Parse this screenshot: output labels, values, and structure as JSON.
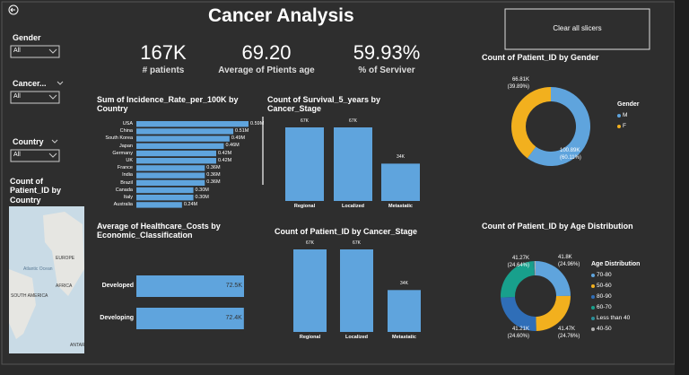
{
  "header": {
    "title": "Cancer Analysis",
    "button": "Clear all slicers"
  },
  "kpis": [
    {
      "value": "167K",
      "label": "# patients"
    },
    {
      "value": "69.20",
      "label": "Average of Ptients age"
    },
    {
      "value": "59.93%",
      "label": "% of Serviver"
    }
  ],
  "slicers": [
    {
      "label": "Gender",
      "selection": "All"
    },
    {
      "label": "Cancer...",
      "selection": "All"
    },
    {
      "label": "Country",
      "selection": "All"
    }
  ],
  "map": {
    "title": "Count of Patient_ID by Country",
    "labels": [
      "EUROPE",
      "Atlantic Ocean",
      "AFRICA",
      "SOUTH AMERICA",
      "ANTAR"
    ]
  },
  "chart_data": [
    {
      "type": "hbar",
      "title": "Sum of Incidence_Rate_per_100K by Country",
      "categories": [
        "USA",
        "China",
        "South Korea",
        "Japan",
        "Germany",
        "UK",
        "France",
        "India",
        "Brazil",
        "Canada",
        "Italy",
        "Australia"
      ],
      "values": [
        590000,
        510000,
        490000,
        460000,
        420000,
        420000,
        360000,
        360000,
        360000,
        300000,
        300000,
        240000
      ],
      "value_labels": [
        "0.59M",
        "0.51M",
        "0.49M",
        "0.46M",
        "0.42M",
        "0.42M",
        "0.36M",
        "0.36M",
        "0.36M",
        "0.30M",
        "0.30M",
        "0.24M"
      ],
      "color": "#5fa4dd"
    },
    {
      "type": "column",
      "title": "Count of Survival_5_years by Cancer_Stage",
      "categories": [
        "Regional",
        "Localized",
        "Metastatic"
      ],
      "values": [
        67000,
        67000,
        34000
      ],
      "value_labels": [
        "67K",
        "67K",
        "34K"
      ],
      "color": "#5fa4dd"
    },
    {
      "type": "hbar",
      "title": "Average of Healthcare_Costs by Economic_Classification",
      "categories": [
        "Developed",
        "Developing"
      ],
      "values": [
        72500,
        72400
      ],
      "value_labels": [
        "72.5K",
        "72.4K"
      ],
      "color": "#5fa4dd"
    },
    {
      "type": "column",
      "title": "Count of Patient_ID by Cancer_Stage",
      "categories": [
        "Regional",
        "Localized",
        "Metastatic"
      ],
      "values": [
        67000,
        67000,
        34000
      ],
      "value_labels": [
        "67K",
        "67K",
        "34K"
      ],
      "color": "#5fa4dd"
    },
    {
      "type": "donut",
      "title": "Count of Patient_ID by Gender",
      "legend_title": "Gender",
      "categories": [
        "M",
        "F"
      ],
      "values": [
        100890,
        66810
      ],
      "value_labels": [
        "100.89K",
        "66.81K"
      ],
      "percent_labels": [
        "(60.11%)",
        "(39.89%)"
      ],
      "colors": [
        "#5fa4dd",
        "#f2b01e"
      ]
    },
    {
      "type": "donut",
      "title": "Count of Patient_ID by Age Distribution",
      "legend_title": "Age Distribution",
      "categories": [
        "70-80",
        "50-60",
        "80-90",
        "60-70",
        "Less than 40",
        "40-50"
      ],
      "values": [
        41800,
        41470,
        41210,
        41270,
        900,
        850
      ],
      "value_labels": [
        "41.8K",
        "41.47K",
        "41.21K",
        "41.27K",
        null,
        null
      ],
      "percent_labels": [
        "(24.96%)",
        "(24.76%)",
        "(24.60%)",
        "(24.64%)",
        null,
        null
      ],
      "colors": [
        "#5fa4dd",
        "#f2b01e",
        "#2f6eb8",
        "#18a08c",
        "#2a8f9a",
        "#b0b0b0"
      ]
    }
  ]
}
